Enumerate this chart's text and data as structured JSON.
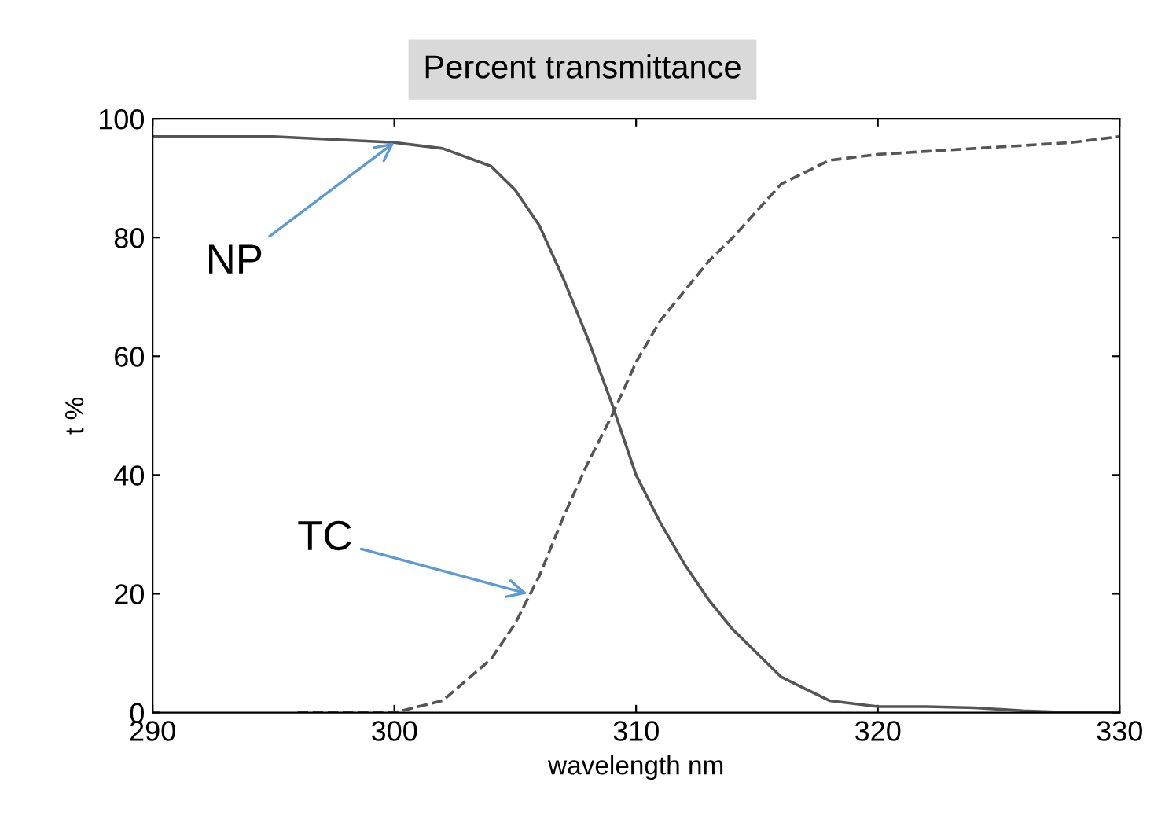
{
  "chart_data": {
    "type": "line",
    "title": "Percent transmittance",
    "xlabel": "wavelength nm",
    "ylabel": "t %",
    "xlim": [
      290,
      330
    ],
    "xticks": [
      290,
      300,
      310,
      320,
      330
    ],
    "ylim": [
      0,
      100
    ],
    "yticks": [
      0,
      20,
      40,
      60,
      80,
      100
    ],
    "grid": false,
    "legend": false,
    "series": [
      {
        "color": "#555555",
        "line_style": "solid",
        "x": [
          290,
          295,
          300,
          302,
          304,
          305,
          306,
          307,
          308,
          309,
          310,
          311,
          312,
          313,
          314,
          316,
          318,
          320,
          322,
          324,
          326,
          328,
          330
        ],
        "values": [
          97,
          97,
          96,
          95,
          92,
          88,
          82,
          73,
          63,
          52,
          40,
          32,
          25,
          19,
          14,
          6,
          2,
          1,
          1,
          0.8,
          0.3,
          0,
          0
        ]
      },
      {
        "color": "#555555",
        "line_style": "dashed",
        "x": [
          296,
          298,
          300,
          302,
          304,
          305,
          306,
          307,
          308,
          309,
          310,
          311,
          312,
          313,
          314,
          316,
          318,
          320,
          322,
          324,
          326,
          328,
          330
        ],
        "values": [
          0,
          0,
          0,
          2,
          9,
          15,
          23,
          33,
          42,
          50,
          59,
          66,
          71,
          76,
          80,
          89,
          93,
          94,
          94.5,
          95,
          95.5,
          96,
          97
        ]
      }
    ],
    "annotations": [
      {
        "text": "NP",
        "x": 300,
        "y": 96
      },
      {
        "text": "TC",
        "x": 305.5,
        "y": 20
      }
    ]
  }
}
